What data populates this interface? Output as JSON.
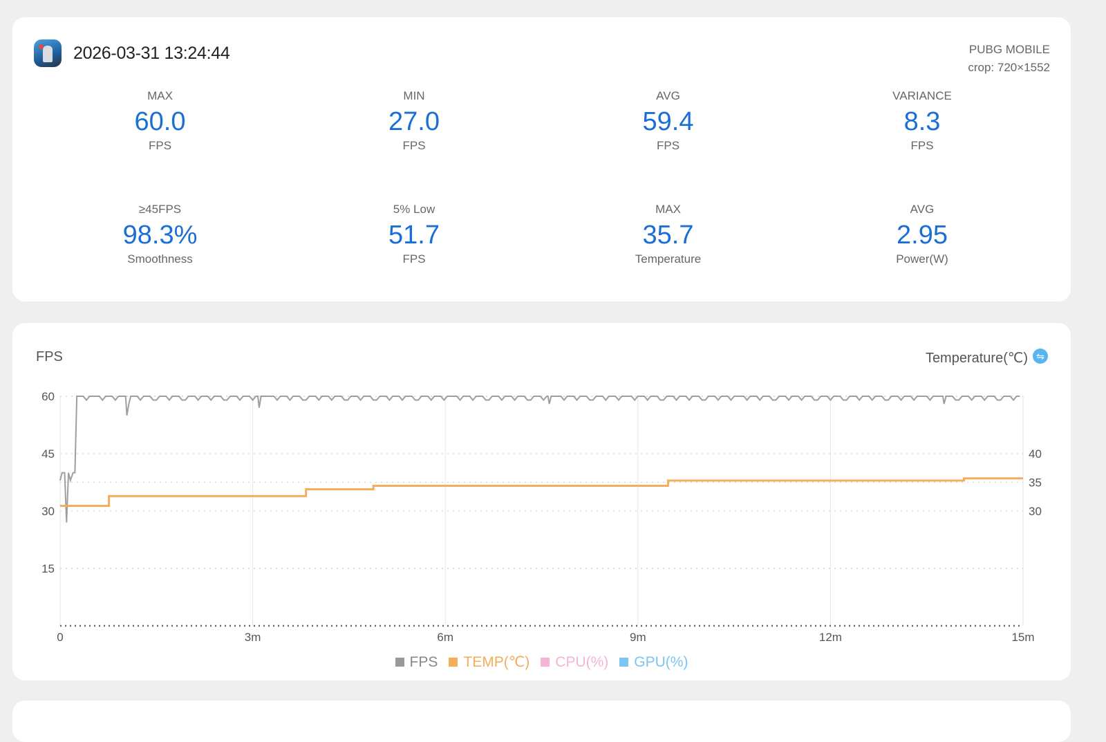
{
  "header": {
    "datetime": "2026-03-31 13:24:44",
    "game": "PUBG MOBILE",
    "crop": "crop: 720×1552",
    "icon": "pubg-app-icon"
  },
  "stats": [
    {
      "label": "MAX",
      "value": "60.0",
      "unit": "FPS"
    },
    {
      "label": "MIN",
      "value": "27.0",
      "unit": "FPS"
    },
    {
      "label": "AVG",
      "value": "59.4",
      "unit": "FPS"
    },
    {
      "label": "VARIANCE",
      "value": "8.3",
      "unit": "FPS"
    },
    {
      "label": "≥45FPS",
      "value": "98.3%",
      "unit": "Smoothness"
    },
    {
      "label": "5% Low",
      "value": "51.7",
      "unit": "FPS"
    },
    {
      "label": "MAX",
      "value": "35.7",
      "unit": "Temperature"
    },
    {
      "label": "AVG",
      "value": "2.95",
      "unit": "Power(W)"
    }
  ],
  "chart_data": {
    "type": "line",
    "left_axis_title": "FPS",
    "right_axis_title": "Temperature(℃)",
    "x_ticks": [
      "0",
      "3m",
      "6m",
      "9m",
      "12m",
      "15m"
    ],
    "x_range_min": [
      0,
      15
    ],
    "left_ticks": [
      "60",
      "45",
      "30",
      "15"
    ],
    "left_range": [
      0,
      60
    ],
    "right_ticks": [
      "40",
      "35",
      "30"
    ],
    "right_range": [
      10,
      50
    ],
    "grid": true,
    "legend_position": "bottom",
    "series": [
      {
        "name": "FPS",
        "color": "#9e9e9e",
        "axis": "left",
        "baseline": 60,
        "points": [
          [
            0,
            38
          ],
          [
            0.03,
            40
          ],
          [
            0.07,
            40
          ],
          [
            0.1,
            27
          ],
          [
            0.13,
            40
          ],
          [
            0.16,
            38
          ],
          [
            0.2,
            40
          ],
          [
            0.23,
            40
          ],
          [
            0.26,
            60
          ],
          [
            1.02,
            60
          ],
          [
            1.04,
            55
          ],
          [
            1.07,
            58
          ],
          [
            1.1,
            60
          ],
          [
            3.08,
            60
          ],
          [
            3.1,
            57
          ],
          [
            3.13,
            60
          ],
          [
            7.6,
            60
          ],
          [
            7.62,
            58
          ],
          [
            7.65,
            60
          ],
          [
            13.75,
            60
          ],
          [
            13.77,
            58
          ],
          [
            13.8,
            60
          ]
        ],
        "noise_dips": 59
      },
      {
        "name": "TEMP(℃)",
        "color": "#f5ad5b",
        "axis": "right",
        "steps": [
          [
            0,
            30.9
          ],
          [
            0.76,
            32.6
          ],
          [
            3.83,
            33.8
          ],
          [
            4.88,
            34.4
          ],
          [
            9.47,
            35.3
          ],
          [
            14.08,
            35.7
          ],
          [
            15,
            35.7
          ]
        ]
      },
      {
        "name": "CPU(%)",
        "color": "#f5b3d8",
        "axis": "left",
        "points": []
      },
      {
        "name": "GPU(%)",
        "color": "#7cc4f2",
        "axis": "left",
        "points": []
      }
    ]
  }
}
